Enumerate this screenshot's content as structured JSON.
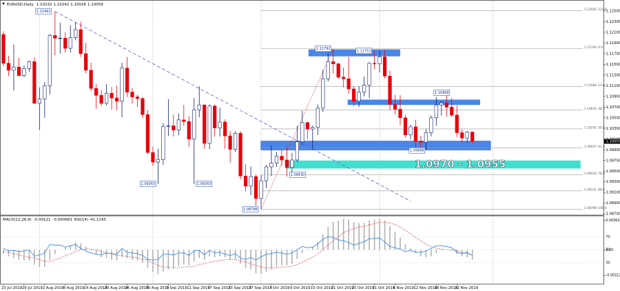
{
  "chart_data": {
    "type": "candlestick",
    "title": "EURUSD,Daily",
    "categories": [
      "23 Jul 2019",
      null,
      null,
      null,
      "29 Jul 2019",
      null,
      null,
      null,
      "2 Aug 2019",
      null,
      null,
      null,
      "8 Aug 2019",
      null,
      null,
      null,
      "14 Aug 2019",
      null,
      null,
      null,
      "20 Aug 2019",
      null,
      null,
      null,
      "26 Aug 2019",
      null,
      null,
      null,
      "30 Aug 2019",
      null,
      null,
      null,
      "5 Sep 2019",
      null,
      null,
      null,
      "11 Sep 2019",
      null,
      null,
      null,
      "17 Sep 2019",
      null,
      null,
      null,
      "23 Sep 2019",
      null,
      null,
      null,
      "27 Sep 2019",
      null,
      null,
      null,
      "3 Oct 2019",
      null,
      null,
      null,
      "9 Oct 2019",
      null,
      null,
      null,
      "15 Oct 2019",
      null,
      null,
      null,
      "21 Oct 2019",
      null,
      null,
      null,
      "25 Oct 2019",
      null,
      null,
      null,
      "31 Oct 2019",
      null,
      null,
      null,
      "6 Nov 2019",
      null,
      null,
      null,
      "12 Nov 2019",
      null,
      null,
      null,
      "18 Nov 2019",
      null,
      null,
      null,
      "22 Nov 2019",
      null,
      null,
      null
    ],
    "open": [
      1.1206,
      1.1152,
      1.1139,
      1.1145,
      1.1129,
      1.1142,
      1.1155,
      1.1077,
      1.1085,
      1.111,
      1.1204,
      1.1199,
      1.1199,
      1.118,
      1.12,
      1.1215,
      1.117,
      1.1139,
      1.1105,
      1.1092,
      1.1077,
      1.1096,
      1.1087,
      1.1081,
      1.1143,
      1.1098,
      1.1089,
      1.1086,
      1.1056,
      1.0985,
      1.0967,
      1.0972,
      1.1034,
      1.1035,
      1.1027,
      1.1046,
      1.1043,
      1.101,
      1.1065,
      1.1074,
      1.1002,
      1.1072,
      1.1031,
      1.1042,
      1.1016,
      1.0991,
      1.1021,
      1.0941,
      1.0922,
      1.094,
      1.0899,
      1.0932,
      1.0958,
      1.0965,
      1.0978,
      1.0971,
      1.0957,
      1.0971,
      1.1005,
      1.1041,
      1.1029,
      1.1032,
      1.1068,
      1.1123,
      1.1155,
      1.1151,
      1.1126,
      1.1123,
      1.1104,
      1.1081,
      1.1098,
      1.1111,
      1.1152,
      1.1151,
      1.1164,
      1.1128,
      1.1075,
      1.1066,
      1.105,
      1.1018,
      1.1033,
      1.1006,
      1.1004,
      1.1022,
      1.105,
      1.1074,
      1.1078,
      1.107,
      1.1055,
      1.1022,
      1.1012,
      1.10232
    ],
    "high": [
      1.1212,
      1.1166,
      1.1187,
      1.1162,
      1.1148,
      1.1157,
      1.1163,
      1.1107,
      1.1117,
      1.1207,
      1.1249,
      1.1228,
      1.121,
      1.1223,
      1.1229,
      1.123,
      1.119,
      1.1153,
      1.1113,
      1.1102,
      1.1113,
      1.1108,
      1.111,
      1.1153,
      1.1164,
      1.1106,
      1.1093,
      1.1089,
      1.1064,
      1.0996,
      1.0992,
      1.104,
      1.1085,
      1.1056,
      1.1058,
      1.1074,
      1.1053,
      1.1087,
      1.1109,
      1.1075,
      1.1075,
      1.1075,
      1.1069,
      1.1047,
      1.1025,
      1.1025,
      1.1025,
      1.0963,
      1.0959,
      1.0944,
      1.0943,
      1.0962,
      1.0998,
      1.0986,
      1.099,
      1.0996,
      1.0984,
      1.1035,
      1.1063,
      1.1043,
      1.1035,
      1.1075,
      1.114,
      1.1172,
      1.1179,
      1.1153,
      1.1144,
      1.1164,
      1.1109,
      1.1109,
      1.1127,
      1.1154,
      1.1175,
      1.1176,
      1.1176,
      1.1138,
      1.1093,
      1.1092,
      1.1055,
      1.1037,
      1.1046,
      1.1016,
      1.1029,
      1.1054,
      1.1089,
      1.1081,
      1.1097,
      1.1087,
      1.1073,
      1.1028,
      1.1025,
      1.10242
    ],
    "low": [
      1.1146,
      1.1128,
      1.1101,
      1.1128,
      1.1126,
      1.1136,
      1.1076,
      1.1027,
      1.105,
      1.1094,
      1.1167,
      1.117,
      1.1172,
      1.1172,
      1.1195,
      1.1164,
      1.1133,
      1.11,
      1.1067,
      1.1072,
      1.1073,
      1.1065,
      1.1064,
      1.1051,
      1.1089,
      1.1076,
      1.107,
      1.1049,
      1.0982,
      1.096,
      1.0926,
      1.0962,
      1.1016,
      1.1015,
      1.1017,
      1.1035,
      1.0996,
      1.0926,
      1.1051,
      1.0992,
      1.0991,
      1.1015,
      1.1015,
      1.0992,
      1.0966,
      1.0986,
      1.0935,
      1.0912,
      1.0905,
      1.0885,
      1.0879,
      1.0918,
      1.0941,
      1.0958,
      1.096,
      1.094,
      1.0943,
      1.0967,
      1.0999,
      1.101,
      1.099,
      1.1018,
      1.1061,
      1.1118,
      1.1133,
      1.1123,
      1.1107,
      1.1095,
      1.1072,
      1.107,
      1.109,
      1.1087,
      1.1141,
      1.1135,
      1.1124,
      1.1065,
      1.1056,
      1.1036,
      1.1013,
      1.101,
      1.0989,
      1.0989,
      1.099,
      1.1015,
      1.1035,
      1.1054,
      1.1052,
      1.1051,
      1.1014,
      1.1003,
      1.1003,
      1.10026
    ],
    "close": [
      1.1152,
      1.1139,
      1.1145,
      1.1129,
      1.1142,
      1.1155,
      1.1077,
      1.1085,
      1.111,
      1.1204,
      1.1199,
      1.1199,
      1.118,
      1.12,
      1.1215,
      1.117,
      1.1139,
      1.1105,
      1.1092,
      1.1077,
      1.1096,
      1.1087,
      1.1081,
      1.1143,
      1.1098,
      1.1089,
      1.1086,
      1.1056,
      1.0985,
      1.0967,
      1.0972,
      1.1034,
      1.1035,
      1.1027,
      1.1046,
      1.1043,
      1.101,
      1.1065,
      1.1074,
      1.1002,
      1.1072,
      1.1031,
      1.1042,
      1.1016,
      1.0991,
      1.1021,
      1.0941,
      1.0922,
      1.094,
      1.0899,
      1.0932,
      1.0958,
      1.0965,
      1.0978,
      1.0971,
      1.0957,
      1.0971,
      1.1005,
      1.1041,
      1.1029,
      1.1032,
      1.1068,
      1.1123,
      1.1155,
      1.1151,
      1.1126,
      1.1123,
      1.1104,
      1.1081,
      1.1098,
      1.1111,
      1.1152,
      1.1151,
      1.1164,
      1.1128,
      1.1075,
      1.1066,
      1.105,
      1.1018,
      1.1033,
      1.1006,
      1.1004,
      1.1022,
      1.105,
      1.1074,
      1.1078,
      1.107,
      1.1055,
      1.1022,
      1.1012,
      1.1023,
      1.10059
    ],
    "up_color": "#ffffff",
    "up_edge_color": "#0a1a6e",
    "down_color": "#e8000b",
    "ylim": [
      1.0869,
      1.1264
    ],
    "yticks": [
      {
        "value": 1.087,
        "label": "1.08700"
      },
      {
        "value": 1.089,
        "label": "1.08900"
      },
      {
        "value": 1.091,
        "label": "1.09100"
      },
      {
        "value": 1.093,
        "label": "1.09300"
      },
      {
        "value": 1.095,
        "label": "1.09500"
      },
      {
        "value": 1.097,
        "label": "1.09700"
      },
      {
        "value": 1.099,
        "label": "1.09900"
      },
      {
        "value": 1.101,
        "label": "1.10100"
      },
      {
        "value": 1.103,
        "label": "1.10300"
      },
      {
        "value": 1.105,
        "label": "1.10500"
      },
      {
        "value": 1.107,
        "label": "1.10700"
      },
      {
        "value": 1.109,
        "label": "1.10900"
      },
      {
        "value": 1.111,
        "label": "1.11100"
      },
      {
        "value": 1.113,
        "label": "1.11300"
      },
      {
        "value": 1.115,
        "label": "1.11500"
      },
      {
        "value": 1.117,
        "label": "1.11700"
      },
      {
        "value": 1.119,
        "label": "1.11900"
      },
      {
        "value": 1.121,
        "label": "1.12100"
      },
      {
        "value": 1.123,
        "label": "1.12300"
      },
      {
        "value": 1.125,
        "label": "1.12500"
      }
    ],
    "fib_color": "#9a9a9a",
    "fib_levels": [
      {
        "price": 1.12502,
        "label": "123.6"
      },
      {
        "price": 1.11793,
        "label": "0.0"
      },
      {
        "price": 1.11084,
        "label": "23.6"
      },
      {
        "price": 1.10645,
        "label": "38.2"
      },
      {
        "price": 1.10291,
        "label": "50.0"
      },
      {
        "price": 1.09937,
        "label": "61.8"
      },
      {
        "price": 1.09432,
        "label": "78.6"
      },
      {
        "price": 1.09131,
        "label": "88.6"
      },
      {
        "price": 1.08789,
        "label": "100.0"
      }
    ],
    "zones": [
      {
        "low": 1.1165,
        "high": 1.1178,
        "color": "#4a86e8"
      },
      {
        "low": 1.1074,
        "high": 1.1084,
        "color": "#4a86e8"
      },
      {
        "low": 1.0989,
        "high": 1.1007,
        "color": "#4a86e8"
      },
      {
        "low": 1.0955,
        "high": 1.097,
        "color": "#40e0d0"
      }
    ],
    "zone_label": "1.0970 - 1.0955",
    "price_labels": [
      1.12491,
      1.09263,
      1.09263,
      1.08786,
      {
        "value": 1.0943,
        "label": "1.09430"
      },
      1.11792,
      1.11752,
      1.09888,
      1.10968
    ],
    "trendline": {
      "x": [
        10,
        79
      ],
      "y": [
        1.1249,
        1.0894
      ],
      "color": "#5a5ad6"
    },
    "fib_line": {
      "x": [
        50,
        64
      ],
      "y": [
        1.0879,
        1.1179
      ],
      "color": "#e03030"
    },
    "indicators": {
      "macd": {
        "name": "MACD(12,26,9)",
        "histogram": [
          -0.0005,
          -0.0008,
          -0.001,
          -0.0012,
          -0.0013,
          -0.0013,
          -0.0018,
          -0.0021,
          -0.0021,
          -0.0012,
          -0.0005,
          0,
          0.0003,
          0.0006,
          0.0009,
          0.0008,
          0.0004,
          -0.0001,
          -0.0005,
          -0.0009,
          -0.001,
          -0.0012,
          -0.0013,
          -0.0009,
          -0.001,
          -0.0012,
          -0.0013,
          -0.0016,
          -0.0022,
          -0.0027,
          -0.003,
          -0.0027,
          -0.0024,
          -0.0023,
          -0.002,
          -0.0018,
          -0.0019,
          -0.0014,
          -0.001,
          -0.0012,
          -0.0008,
          -0.0009,
          -0.0008,
          -0.0009,
          -0.0012,
          -0.0012,
          -0.0017,
          -0.0022,
          -0.0024,
          -0.0029,
          -0.0029,
          -0.0027,
          -0.0024,
          -0.0021,
          -0.0019,
          -0.0019,
          -0.0017,
          -0.0011,
          -0.0004,
          0,
          0.0004,
          0.001,
          0.0019,
          0.0028,
          0.0034,
          0.0036,
          0.0038,
          0.0037,
          0.0034,
          0.0033,
          0.0033,
          0.0036,
          0.0037,
          0.0038,
          0.0036,
          0.0029,
          0.0022,
          0.0015,
          0.0007,
          0.0002,
          -0.0004,
          -0.0008,
          -0.0009,
          -0.0008,
          -0.0004,
          -0.0001,
          0,
          -0.0001,
          -0.0005,
          -0.0008,
          -0.0009,
          -0.00121
        ],
        "signal": [
          -0.0002,
          -0.0003,
          -0.0005,
          -0.0006,
          -0.0008,
          -0.0009,
          -0.001,
          -0.0012,
          -0.0014,
          -0.0014,
          -0.0012,
          -0.001,
          -0.0007,
          -0.0005,
          -0.0002,
          0,
          0.0001,
          0.0001,
          0,
          -0.0002,
          -0.0004,
          -0.0005,
          -0.0007,
          -0.0007,
          -0.0008,
          -0.0009,
          -0.001,
          -0.0011,
          -0.0013,
          -0.0016,
          -0.0019,
          -0.0021,
          -0.0021,
          -0.0022,
          -0.0022,
          -0.0021,
          -0.0021,
          -0.002,
          -0.0018,
          -0.0017,
          -0.0015,
          -0.0014,
          -0.0013,
          -0.0012,
          -0.0012,
          -0.0012,
          -0.0013,
          -0.0015,
          -0.0017,
          -0.0019,
          -0.0021,
          -0.0022,
          -0.0022,
          -0.0022,
          -0.0021,
          -0.0021,
          -0.002,
          -0.0018,
          -0.0015,
          -0.0012,
          -0.0009,
          -0.0005,
          0,
          0.0006,
          0.0011,
          0.0016,
          0.0021,
          0.0024,
          0.0026,
          0.0028,
          0.0029,
          0.0031,
          0.0032,
          0.0034,
          0.0034,
          0.0033,
          0.0031,
          0.0028,
          0.0024,
          0.002,
          0.0015,
          0.0011,
          0.0007,
          0.0004,
          0.0002,
          0.0001,
          0,
          0,
          -0.0001,
          -0.0003,
          -0.0005,
          -0.000663
        ],
        "histogram_color": "#b0b0b0",
        "signal_color": "#e03030",
        "ylim": [
          -0.0042,
          0.004
        ],
        "yticks": [
          0.003624,
          {
            "value": 0,
            "label": "0.00"
          },
          -0.003121
        ]
      },
      "rsi": {
        "name": "RSI(14)",
        "values": [
          52,
          48,
          49,
          47,
          48,
          50,
          40,
          42,
          45,
          58,
          57,
          57,
          54,
          56,
          58,
          52,
          48,
          45,
          43,
          42,
          45,
          44,
          43,
          52,
          46,
          45,
          44,
          41,
          35,
          34,
          35,
          43,
          43,
          42,
          45,
          45,
          41,
          48,
          49,
          42,
          49,
          45,
          46,
          43,
          41,
          44,
          37,
          35,
          38,
          34,
          39,
          43,
          44,
          46,
          45,
          43,
          45,
          50,
          55,
          53,
          54,
          59,
          66,
          70,
          69,
          65,
          64,
          61,
          57,
          60,
          62,
          67,
          67,
          68,
          62,
          55,
          53,
          51,
          47,
          49,
          46,
          46,
          48,
          52,
          56,
          56,
          55,
          53,
          46,
          44,
          46,
          41.1143
        ],
        "color": "#3a8ee6",
        "ylim": [
          -3,
          100
        ],
        "yticks": [
          70,
          50,
          30
        ]
      }
    }
  }
}
